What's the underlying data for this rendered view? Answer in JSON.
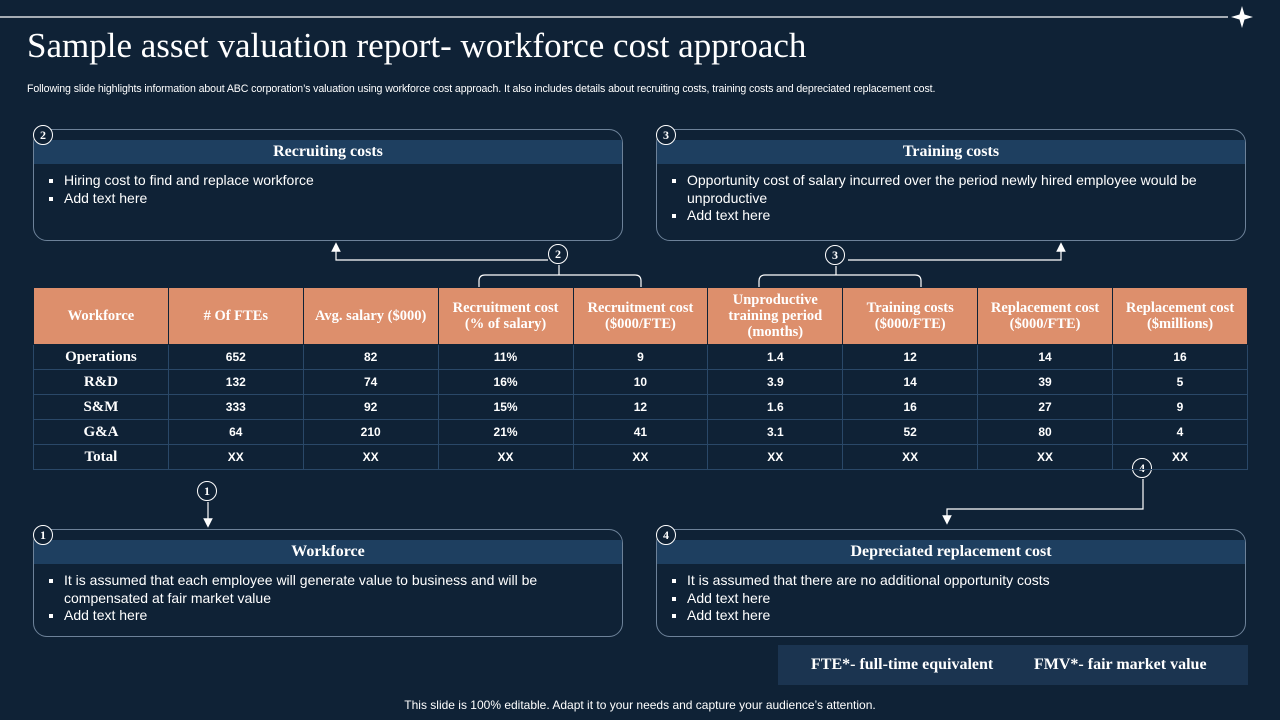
{
  "header": {
    "title": "Sample asset valuation report- workforce cost approach",
    "subtitle": "Following slide highlights information about ABC corporation’s valuation using workforce cost approach. It also includes details about recruiting costs, training costs and depreciated replacement cost."
  },
  "boxes": [
    {
      "number": "2",
      "title": "Recruiting costs",
      "bullets": [
        "Hiring cost to find and replace workforce",
        "Add text here"
      ]
    },
    {
      "number": "3",
      "title": "Training costs",
      "bullets": [
        "Opportunity cost of salary incurred over the period newly hired employee would be unproductive",
        "Add text here"
      ]
    },
    {
      "number": "1",
      "title": "Workforce",
      "bullets": [
        "It is assumed that each employee will generate value to business and will be compensated at fair market value",
        "Add text here"
      ]
    },
    {
      "number": "4",
      "title": "Depreciated replacement cost",
      "bullets": [
        "It is assumed that there are no additional opportunity costs",
        "Add text here",
        "Add text here"
      ]
    }
  ],
  "connectors": [
    "2",
    "3",
    "1",
    "4"
  ],
  "table": {
    "columns": [
      "Workforce",
      "# Of FTEs",
      "Avg. salary ($000)",
      "Recruitment cost (% of salary)",
      "Recruitment cost ($000/FTE)",
      "Unproductive training period (months)",
      "Training costs ($000/FTE)",
      "Replacement cost ($000/FTE)",
      "Replacement cost ($millions)"
    ],
    "rows": [
      [
        "Operations",
        "652",
        "82",
        "11%",
        "9",
        "1.4",
        "12",
        "14",
        "16"
      ],
      [
        "R&D",
        "132",
        "74",
        "16%",
        "10",
        "3.9",
        "14",
        "39",
        "5"
      ],
      [
        "S&M",
        "333",
        "92",
        "15%",
        "12",
        "1.6",
        "16",
        "27",
        "9"
      ],
      [
        "G&A",
        "64",
        "210",
        "21%",
        "41",
        "3.1",
        "52",
        "80",
        "4"
      ],
      [
        "Total",
        "XX",
        "XX",
        "XX",
        "XX",
        "XX",
        "XX",
        "XX",
        "XX"
      ]
    ]
  },
  "notes": [
    "FTE*- full-time equivalent",
    "FMV*- fair market value"
  ],
  "footer": "This slide is 100% editable. Adapt it to your needs and capture your audience’s attention."
}
